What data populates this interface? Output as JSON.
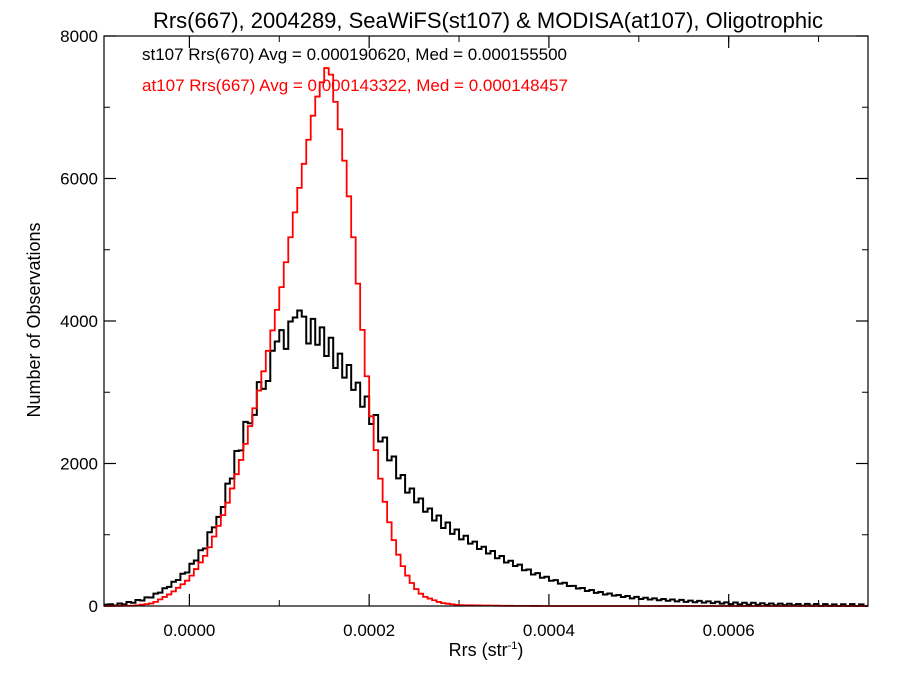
{
  "chart_data": {
    "type": "histogram",
    "title": "Rrs(667), 2004289, SeaWiFS(st107) & MODISA(at107), Oligotrophic",
    "xlabel": "Rrs (str",
    "xlabel_superscript": "-1",
    "xlabel_suffix": ")",
    "ylabel": "Number of Observations",
    "xlim": [
      -9.5e-05,
      0.000755
    ],
    "ylim": [
      0,
      8000
    ],
    "x_ticks": [
      0.0,
      0.0002,
      0.0004,
      0.0006
    ],
    "x_tick_labels": [
      "0.0000",
      "0.0002",
      "0.0004",
      "0.0006"
    ],
    "y_ticks": [
      0,
      2000,
      4000,
      6000,
      8000
    ],
    "y_tick_labels": [
      "0",
      "2000",
      "4000",
      "6000",
      "8000"
    ],
    "bin_width": 5e-06,
    "series": [
      {
        "name": "st107 Rrs(670) Avg = 0.000190620, Med = 0.000155500",
        "color": "#000000",
        "style": "jagged-step",
        "points": [
          [
            -9.5e-05,
            5
          ],
          [
            -8e-05,
            20
          ],
          [
            -6e-05,
            60
          ],
          [
            -4e-05,
            140
          ],
          [
            -2e-05,
            300
          ],
          [
            0.0,
            520
          ],
          [
            2e-05,
            900
          ],
          [
            4e-05,
            1550
          ],
          [
            6e-05,
            2400
          ],
          [
            8e-05,
            3100
          ],
          [
            0.0001,
            3650
          ],
          [
            0.00012,
            3950
          ],
          [
            0.00014,
            3850
          ],
          [
            0.00016,
            3550
          ],
          [
            0.00018,
            3200
          ],
          [
            0.0002,
            2750
          ],
          [
            0.00022,
            2200
          ],
          [
            0.00024,
            1700
          ],
          [
            0.00026,
            1400
          ],
          [
            0.00028,
            1180
          ],
          [
            0.0003,
            1000
          ],
          [
            0.00032,
            850
          ],
          [
            0.00034,
            720
          ],
          [
            0.00036,
            600
          ],
          [
            0.00038,
            480
          ],
          [
            0.0004,
            380
          ],
          [
            0.00042,
            300
          ],
          [
            0.00044,
            230
          ],
          [
            0.00046,
            180
          ],
          [
            0.00048,
            140
          ],
          [
            0.0005,
            110
          ],
          [
            0.00055,
            70
          ],
          [
            0.0006,
            40
          ],
          [
            0.00065,
            25
          ],
          [
            0.0007,
            15
          ],
          [
            0.00075,
            10
          ]
        ]
      },
      {
        "name": "at107 Rrs(667) Avg = 0.000143322, Med = 0.000148457",
        "color": "#ff0000",
        "style": "step",
        "points": [
          [
            -9.5e-05,
            0
          ],
          [
            -6e-05,
            5
          ],
          [
            -4e-05,
            40
          ],
          [
            -2e-05,
            180
          ],
          [
            0.0,
            380
          ],
          [
            2e-05,
            750
          ],
          [
            4e-05,
            1350
          ],
          [
            6e-05,
            2150
          ],
          [
            8e-05,
            3150
          ],
          [
            0.0001,
            4300
          ],
          [
            0.00012,
            5700
          ],
          [
            0.00014,
            7050
          ],
          [
            0.000155,
            7650
          ],
          [
            0.00017,
            6500
          ],
          [
            0.00018,
            5500
          ],
          [
            0.00019,
            4200
          ],
          [
            0.0002,
            2900
          ],
          [
            0.00021,
            1950
          ],
          [
            0.00022,
            1300
          ],
          [
            0.00023,
            800
          ],
          [
            0.00024,
            480
          ],
          [
            0.00025,
            270
          ],
          [
            0.00026,
            140
          ],
          [
            0.00028,
            45
          ],
          [
            0.0003,
            12
          ],
          [
            0.00035,
            3
          ],
          [
            0.0004,
            0
          ],
          [
            0.00075,
            0
          ]
        ]
      }
    ]
  }
}
